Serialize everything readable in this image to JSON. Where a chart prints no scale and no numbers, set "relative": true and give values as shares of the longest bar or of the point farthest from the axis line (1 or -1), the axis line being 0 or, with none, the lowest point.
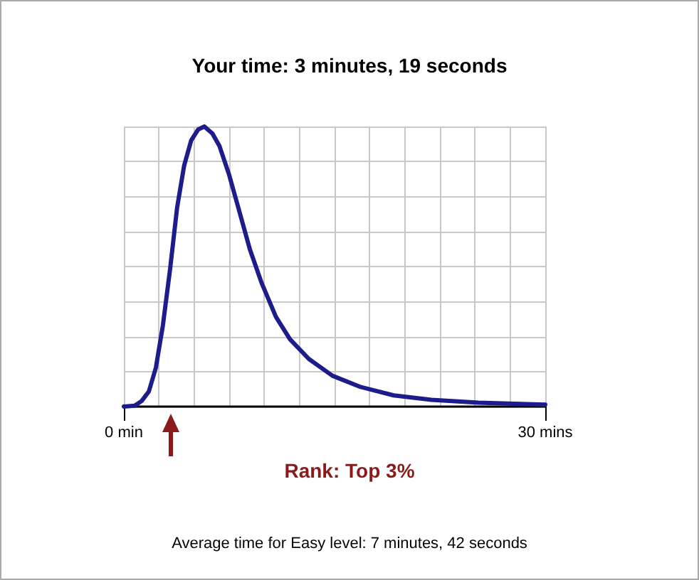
{
  "chart_data": {
    "type": "line",
    "title": "Your time: 3 minutes, 19 seconds",
    "relative": true,
    "x": [
      0,
      0.77,
      1.27,
      1.78,
      2.28,
      2.78,
      3.29,
      3.79,
      4.29,
      4.79,
      5.3,
      5.73,
      6.3,
      6.81,
      7.48,
      8.15,
      8.98,
      9.82,
      10.83,
      11.83,
      13.17,
      14.85,
      16.86,
      19.21,
      21.89,
      25.24,
      30
    ],
    "series": [
      {
        "color": "#1c1c8a",
        "values": [
          0,
          0.003,
          0.02,
          0.054,
          0.139,
          0.29,
          0.49,
          0.71,
          0.86,
          0.95,
          0.99,
          1,
          0.975,
          0.93,
          0.83,
          0.71,
          0.56,
          0.44,
          0.32,
          0.24,
          0.17,
          0.11,
          0.07,
          0.04,
          0.024,
          0.014,
          0.007
        ]
      }
    ],
    "xlim": [
      0,
      30
    ],
    "xticks": [
      {
        "value": 0,
        "label": "0 min"
      },
      {
        "value": 30,
        "label": "30 mins"
      }
    ],
    "annotations": [
      "Rank: Top 3%",
      "Average time for Easy level: 7 minutes, 42 seconds"
    ],
    "grid": true,
    "marker": "none",
    "line_style": "solid"
  }
}
